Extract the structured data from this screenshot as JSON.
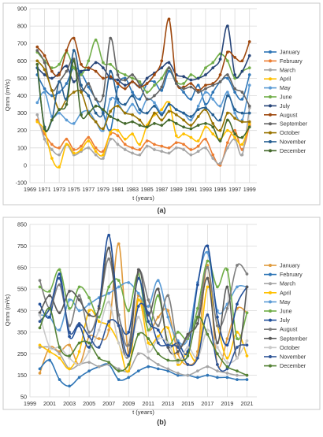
{
  "chart_data": [
    {
      "type": "line",
      "panel_label": "(a)",
      "xlabel": "t (years)",
      "ylabel": "Qmm (m³/s)",
      "xlim": [
        1969,
        2000
      ],
      "ylim": [
        -100,
        900
      ],
      "xticks": [
        1969,
        1971,
        1973,
        1975,
        1977,
        1979,
        1981,
        1983,
        1985,
        1987,
        1989,
        1991,
        1993,
        1995,
        1997,
        1999
      ],
      "yticks": [
        -100,
        0,
        100,
        200,
        300,
        400,
        500,
        600,
        700,
        800,
        900
      ],
      "grid": true,
      "legend_position": "right",
      "x": [
        1970,
        1971,
        1972,
        1973,
        1974,
        1975,
        1976,
        1977,
        1978,
        1979,
        1980,
        1981,
        1982,
        1983,
        1984,
        1985,
        1986,
        1987,
        1988,
        1989,
        1990,
        1991,
        1992,
        1993,
        1994,
        1995,
        1996,
        1997,
        1998,
        1999
      ],
      "series": [
        {
          "name": "January",
          "color": "#2e75b6",
          "values": [
            520,
            440,
            400,
            420,
            470,
            560,
            530,
            450,
            380,
            300,
            200,
            450,
            500,
            420,
            380,
            470,
            480,
            430,
            540,
            470,
            420,
            380,
            460,
            350,
            420,
            480,
            500,
            420,
            380,
            520
          ]
        },
        {
          "name": "February",
          "color": "#ed7d31",
          "values": [
            260,
            180,
            120,
            100,
            150,
            90,
            110,
            160,
            100,
            80,
            180,
            170,
            120,
            100,
            90,
            140,
            120,
            110,
            100,
            130,
            120,
            90,
            110,
            150,
            60,
            0,
            130,
            200,
            90,
            230
          ]
        },
        {
          "name": "March",
          "color": "#a5a5a5",
          "values": [
            290,
            150,
            90,
            60,
            120,
            60,
            80,
            100,
            60,
            40,
            150,
            120,
            90,
            70,
            60,
            110,
            90,
            80,
            70,
            100,
            90,
            60,
            80,
            100,
            40,
            10,
            100,
            150,
            60,
            330
          ]
        },
        {
          "name": "April",
          "color": "#ffc000",
          "values": [
            250,
            200,
            40,
            -10,
            120,
            70,
            90,
            140,
            80,
            60,
            190,
            200,
            150,
            180,
            120,
            230,
            290,
            320,
            360,
            170,
            180,
            160,
            140,
            220,
            180,
            150,
            200,
            160,
            120,
            240
          ]
        },
        {
          "name": "May",
          "color": "#5b9bd5",
          "values": [
            360,
            420,
            280,
            300,
            260,
            240,
            300,
            310,
            250,
            200,
            380,
            360,
            300,
            350,
            300,
            380,
            360,
            300,
            350,
            320,
            300,
            260,
            340,
            420,
            380,
            340,
            420,
            300,
            260,
            460
          ]
        },
        {
          "name": "June",
          "color": "#70ad47",
          "values": [
            650,
            600,
            560,
            580,
            650,
            560,
            520,
            600,
            720,
            590,
            580,
            540,
            520,
            500,
            480,
            420,
            460,
            500,
            560,
            480,
            470,
            520,
            500,
            560,
            590,
            640,
            600,
            500,
            540,
            560
          ]
        },
        {
          "name": "July",
          "color": "#264478",
          "values": [
            560,
            520,
            500,
            530,
            570,
            480,
            540,
            550,
            590,
            560,
            500,
            490,
            460,
            480,
            450,
            500,
            530,
            560,
            590,
            520,
            510,
            490,
            500,
            520,
            560,
            610,
            800,
            520,
            540,
            630
          ]
        },
        {
          "name": "August",
          "color": "#9e480e",
          "values": [
            680,
            630,
            540,
            520,
            660,
            730,
            580,
            560,
            540,
            500,
            510,
            470,
            440,
            480,
            450,
            470,
            520,
            600,
            840,
            480,
            450,
            470,
            430,
            460,
            470,
            520,
            650,
            620,
            600,
            710
          ]
        },
        {
          "name": "September",
          "color": "#636363",
          "values": [
            660,
            590,
            430,
            480,
            540,
            610,
            430,
            470,
            380,
            400,
            730,
            520,
            490,
            520,
            460,
            380,
            400,
            450,
            560,
            470,
            440,
            450,
            420,
            440,
            460,
            480,
            520,
            440,
            420,
            340
          ]
        },
        {
          "name": "October",
          "color": "#997300",
          "values": [
            600,
            550,
            430,
            320,
            380,
            420,
            420,
            300,
            250,
            210,
            310,
            340,
            300,
            290,
            260,
            220,
            300,
            260,
            310,
            290,
            260,
            230,
            280,
            320,
            240,
            200,
            300,
            270,
            250,
            250
          ]
        },
        {
          "name": "November",
          "color": "#255e91",
          "values": [
            560,
            220,
            260,
            480,
            380,
            660,
            460,
            400,
            300,
            300,
            540,
            380,
            350,
            400,
            320,
            300,
            340,
            290,
            350,
            320,
            300,
            280,
            320,
            330,
            290,
            260,
            400,
            320,
            300,
            300
          ]
        },
        {
          "name": "December",
          "color": "#43682b",
          "values": [
            580,
            210,
            260,
            320,
            350,
            600,
            290,
            300,
            340,
            320,
            280,
            260,
            240,
            250,
            230,
            220,
            240,
            230,
            260,
            240,
            220,
            210,
            230,
            240,
            220,
            140,
            260,
            180,
            160,
            220
          ]
        }
      ]
    },
    {
      "type": "line",
      "panel_label": "(b)",
      "xlabel": "t (years)",
      "ylabel": "Qmm (m³/s)",
      "xlim": [
        1999,
        2022
      ],
      "ylim": [
        50,
        850
      ],
      "xticks": [
        1999,
        2001,
        2003,
        2005,
        2007,
        2009,
        2011,
        2013,
        2015,
        2017,
        2019,
        2021
      ],
      "yticks": [
        50,
        150,
        250,
        350,
        450,
        550,
        650,
        750,
        850
      ],
      "grid": true,
      "legend_position": "right",
      "x": [
        2000,
        2001,
        2002,
        2003,
        2004,
        2005,
        2006,
        2007,
        2008,
        2009,
        2010,
        2011,
        2012,
        2013,
        2014,
        2015,
        2016,
        2017,
        2018,
        2019,
        2020,
        2021
      ],
      "series": [
        {
          "name": "January",
          "color": "#e09b3d",
          "values": [
            160,
            280,
            260,
            290,
            200,
            330,
            320,
            360,
            760,
            250,
            520,
            360,
            420,
            450,
            250,
            200,
            260,
            660,
            200,
            320,
            460,
            440
          ]
        },
        {
          "name": "February",
          "color": "#2e75b6",
          "values": [
            180,
            220,
            130,
            100,
            140,
            170,
            190,
            200,
            130,
            140,
            170,
            190,
            180,
            170,
            150,
            150,
            140,
            150,
            140,
            140,
            130,
            130
          ]
        },
        {
          "name": "March",
          "color": "#a5a5a5",
          "values": [
            280,
            280,
            250,
            180,
            200,
            210,
            190,
            200,
            180,
            170,
            250,
            230,
            200,
            180,
            160,
            150,
            170,
            190,
            170,
            160,
            150,
            150
          ]
        },
        {
          "name": "April",
          "color": "#ffc000",
          "values": [
            290,
            260,
            230,
            180,
            260,
            450,
            400,
            380,
            300,
            170,
            500,
            300,
            330,
            370,
            200,
            260,
            230,
            560,
            380,
            230,
            350,
            240
          ]
        },
        {
          "name": "May",
          "color": "#5b9bd5",
          "values": [
            430,
            420,
            360,
            500,
            450,
            480,
            510,
            530,
            560,
            580,
            530,
            470,
            590,
            420,
            310,
            320,
            580,
            720,
            450,
            480,
            560,
            560
          ]
        },
        {
          "name": "June",
          "color": "#70ad47",
          "values": [
            560,
            540,
            640,
            460,
            560,
            510,
            420,
            560,
            590,
            450,
            620,
            360,
            520,
            300,
            350,
            320,
            460,
            680,
            560,
            640,
            320,
            440
          ]
        },
        {
          "name": "July",
          "color": "#1f4e99",
          "values": [
            480,
            420,
            620,
            330,
            380,
            280,
            470,
            800,
            430,
            350,
            600,
            400,
            360,
            280,
            300,
            260,
            570,
            750,
            420,
            290,
            480,
            560
          ]
        },
        {
          "name": "August",
          "color": "#7f7f7f",
          "values": [
            590,
            460,
            570,
            380,
            520,
            350,
            460,
            690,
            430,
            290,
            630,
            500,
            380,
            520,
            290,
            330,
            420,
            650,
            380,
            460,
            660,
            620
          ]
        },
        {
          "name": "September",
          "color": "#595959",
          "values": [
            440,
            520,
            440,
            540,
            500,
            430,
            460,
            740,
            380,
            240,
            640,
            430,
            550,
            280,
            260,
            340,
            390,
            600,
            300,
            560,
            230,
            560
          ]
        },
        {
          "name": "October",
          "color": "#c9c9c9",
          "values": [
            430,
            280,
            280,
            230,
            200,
            260,
            360,
            490,
            300,
            240,
            420,
            260,
            320,
            300,
            210,
            280,
            230,
            360,
            280,
            210,
            230,
            310
          ]
        },
        {
          "name": "November",
          "color": "#2f5597",
          "values": [
            400,
            460,
            600,
            350,
            390,
            330,
            280,
            400,
            380,
            240,
            470,
            440,
            300,
            290,
            280,
            200,
            230,
            430,
            200,
            180,
            280,
            290
          ]
        },
        {
          "name": "December",
          "color": "#548235",
          "values": [
            370,
            460,
            280,
            240,
            300,
            300,
            230,
            210,
            170,
            200,
            340,
            320,
            250,
            220,
            220,
            240,
            420,
            340,
            250,
            190,
            170,
            150
          ]
        }
      ]
    }
  ]
}
